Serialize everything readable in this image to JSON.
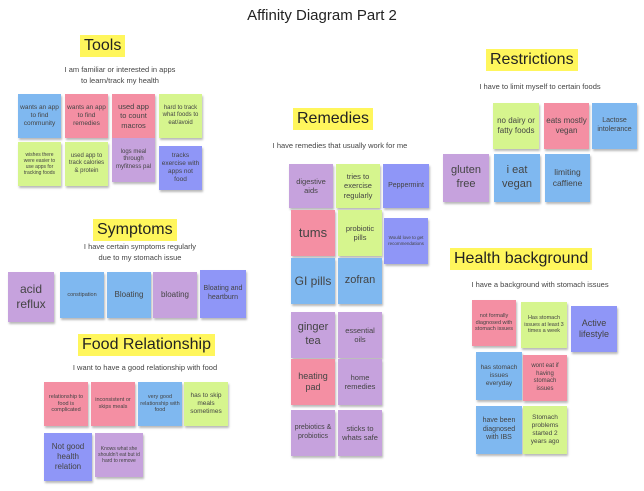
{
  "title": "Affinity Diagram Part 2",
  "colors": {
    "blue": "#7fb8f0",
    "pink": "#f48fa3",
    "purple": "#c6a2dd",
    "green": "#d6f58e",
    "indigo": "#8f96f7",
    "yellow": "#fff65c"
  },
  "tools": {
    "heading": "Tools",
    "desc_line1": "I am familiar or interested in apps",
    "desc_line2": "to learn/track my health",
    "notes": [
      "wants an app to find community",
      "wants an app to find remedies",
      "used app to count macros",
      "hard to track what foods to eat/avoid",
      "wishes there were easier to use apps for tracking foods",
      "used app to track calories & protein",
      "logs meal through myfitness pal",
      "tracks exercise with apps not food"
    ]
  },
  "symptoms": {
    "heading": "Symptoms",
    "desc_line1": "I have certain symptoms regularly",
    "desc_line2": "due to my stomach issue",
    "notes": [
      "acid reflux",
      "constipation",
      "Bloating",
      "bloating",
      "Bloating and heartburn"
    ]
  },
  "food": {
    "heading": "Food Relationship",
    "desc": "I want to have a good relationship with food",
    "notes": [
      "relationship to food is complicated",
      "inconsistent or skips meals",
      "very good relationship with food",
      "has to skip meals sometimes",
      "Not good health relation",
      "Knows what she shouldn't eat but id hard to remove"
    ]
  },
  "remedies": {
    "heading": "Remedies",
    "desc": "I have remedies that usually work for me",
    "notes": [
      "digestive aids",
      "tries to exercise regularly",
      "Peppermint",
      "tums",
      "probiotic pills",
      "Would love to get recommendations",
      "GI pills",
      "zofran",
      "ginger tea",
      "essential oils",
      "heating pad",
      "home remedies",
      "prebiotics & probiotics",
      "sticks to whats safe"
    ]
  },
  "restrictions": {
    "heading": "Restrictions",
    "desc": "I have to limit myself to certain foods",
    "notes": [
      "no dairy or fatty foods",
      "eats mostly vegan",
      "Lactose intolerance",
      "gluten free",
      "i eat vegan",
      "limiting caffiene"
    ]
  },
  "health": {
    "heading": "Health background",
    "desc": "I have a background with stomach issues",
    "notes": [
      "not formally diagnosed with stomach issues",
      "Has stomach issues at least 3 times a week",
      "Active lifestyle",
      "has stomach issues everyday",
      "wont eat if having stomach issues",
      "have been diagnosed with IBS",
      "Stomach problems started 2 years ago"
    ]
  }
}
